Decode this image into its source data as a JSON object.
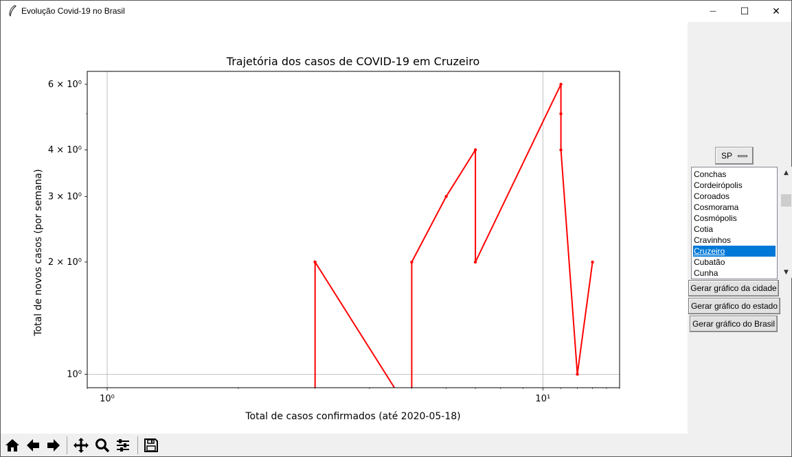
{
  "window": {
    "title": "Evolução Covid-19 no Brasil",
    "controls": {
      "minimize": "—",
      "maximize": "☐",
      "close": "✕"
    }
  },
  "chart_data": {
    "type": "line",
    "title": "Trajetória dos casos de COVID-19 em Cruzeiro",
    "xlabel": "Total de casos confirmados (até 2020-05-18)",
    "ylabel": "Total de novos casos (por semana)",
    "xscale": "log",
    "yscale": "log",
    "xlim": [
      0.9,
      15
    ],
    "ylim": [
      0.92,
      6.5
    ],
    "grid": true,
    "color": "#ff0000",
    "x_ticks": [
      {
        "value": 1,
        "label": "10⁰"
      },
      {
        "value": 10,
        "label": "10¹"
      }
    ],
    "y_ticks": [
      {
        "value": 1,
        "label": "10⁰"
      },
      {
        "value": 2,
        "label": "2 × 10⁰"
      },
      {
        "value": 3,
        "label": "3 × 10⁰"
      },
      {
        "value": 4,
        "label": "4 × 10⁰"
      },
      {
        "value": 6,
        "label": "6 × 10⁰"
      }
    ],
    "series": [
      {
        "x": [
          3,
          3,
          5,
          5,
          6,
          7,
          7,
          11,
          11,
          11,
          12,
          13
        ],
        "y": [
          0,
          2,
          0,
          2,
          3,
          4,
          2,
          6,
          5,
          4,
          1,
          2
        ]
      }
    ]
  },
  "sidebar": {
    "state_select": "SP",
    "cities": [
      "Conchas",
      "Cordeirópolis",
      "Coroados",
      "Cosmorama",
      "Cosmópolis",
      "Cotia",
      "Cravinhos",
      "Cruzeiro",
      "Cubatão",
      "Cunha"
    ],
    "selected_index": 7,
    "buttons": {
      "city": "Gerar gráfico da cidade",
      "state": "Gerar gráfico do estado",
      "brazil": "Gerar gráfico do Brasil"
    }
  },
  "toolbar": {
    "icons": [
      "home-icon",
      "back-icon",
      "forward-icon",
      "pan-icon",
      "zoom-icon",
      "configure-icon",
      "save-icon"
    ]
  }
}
